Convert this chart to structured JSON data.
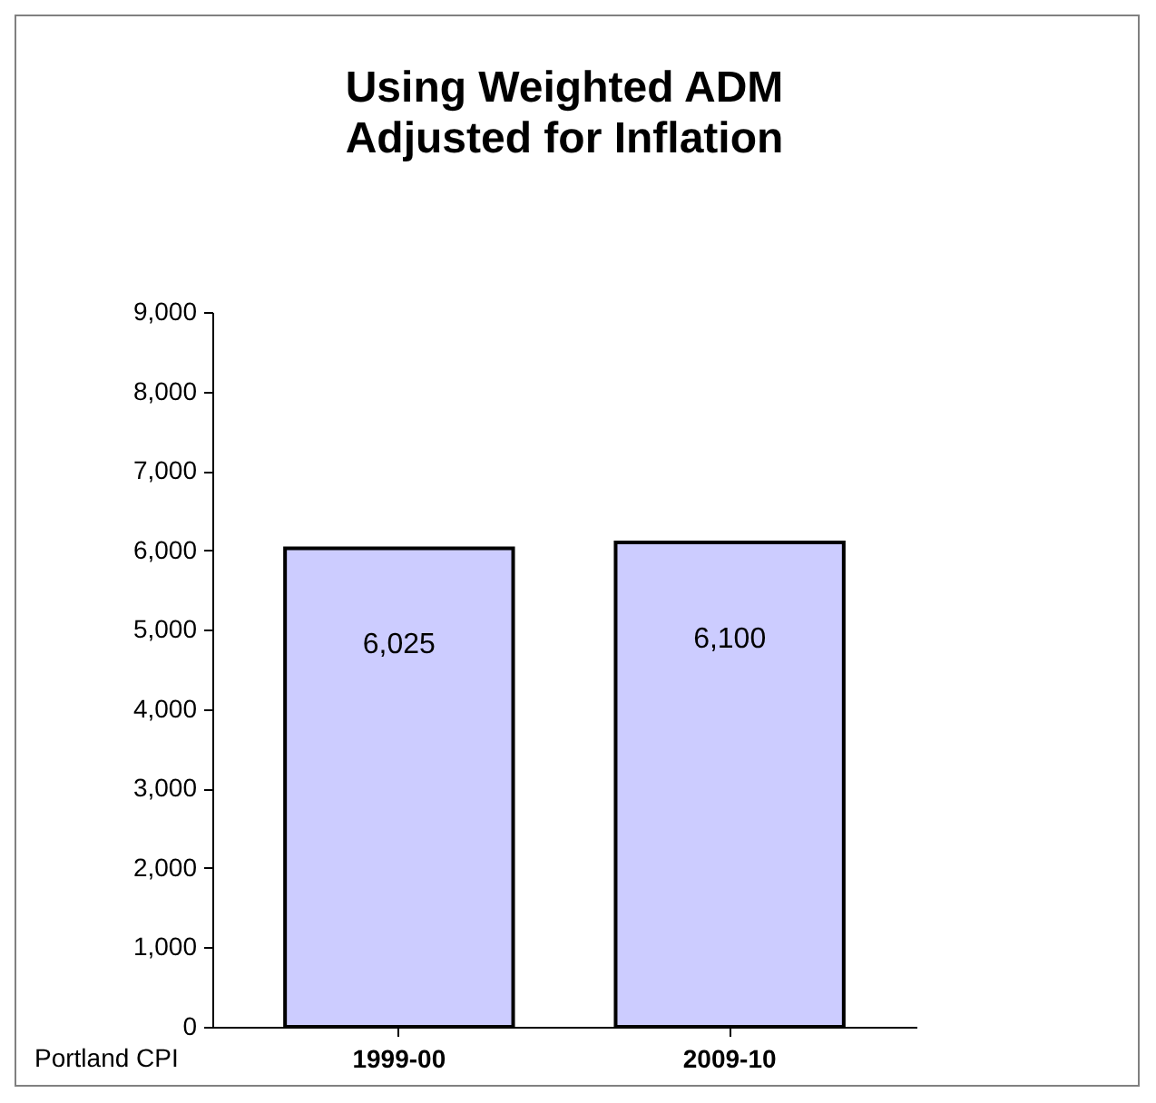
{
  "chart_data": {
    "type": "bar",
    "title": "Using Weighted ADM\nAdjusted for Inflation",
    "categories": [
      "1999-00",
      "2009-10"
    ],
    "values": [
      6025,
      6100
    ],
    "color": "#ccccff",
    "value_labels": [
      "6,025",
      "6,100"
    ],
    "ylim": [
      0,
      9000
    ],
    "yticks": [
      {
        "value": 0,
        "label": "0"
      },
      {
        "value": 1000,
        "label": "1,000"
      },
      {
        "value": 2000,
        "label": "2,000"
      },
      {
        "value": 3000,
        "label": "3,000"
      },
      {
        "value": 4000,
        "label": "4,000"
      },
      {
        "value": 5000,
        "label": "5,000"
      },
      {
        "value": 6000,
        "label": "6,000"
      },
      {
        "value": 7000,
        "label": "7,000"
      },
      {
        "value": 8000,
        "label": "8,000"
      },
      {
        "value": 9000,
        "label": "9,000"
      }
    ],
    "grid": false,
    "annotations": [
      "Portland CPI"
    ]
  }
}
